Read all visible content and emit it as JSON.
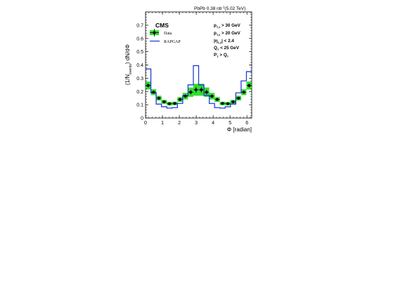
{
  "header": {
    "collab": "PbPb 0.38 nb",
    "lumi_exp": "-1",
    "energy": "(5.02 TeV)"
  },
  "chart_data": {
    "type": "histogram",
    "experiment": "CMS",
    "xlabel": "Φ [radian]",
    "ylabel": {
      "main": "(1/N",
      "sub": "events",
      "tail": ") dN/dΦ"
    },
    "xlim": [
      0,
      6.283
    ],
    "ylim": [
      0,
      0.8
    ],
    "xticks": [
      0,
      1,
      2,
      3,
      4,
      5,
      6
    ],
    "yticks": [
      0,
      0.1,
      0.2,
      0.3,
      0.4,
      0.5,
      0.6,
      0.7
    ],
    "legend": {
      "placement": "top-left",
      "entries": [
        {
          "label": "Data",
          "style": "marker-with-band"
        },
        {
          "label": "RAPGAP",
          "style": "line"
        }
      ]
    },
    "cuts": [
      {
        "base": "p",
        "sub": "T,1",
        "rest": " > 30 GeV"
      },
      {
        "base": "p",
        "sub": "T,2",
        "rest": " > 20 GeV"
      },
      {
        "base": "|η",
        "sub": "1,2",
        "rest": "| < 2.4"
      },
      {
        "base": "Q",
        "sub": "T",
        "rest": " < 25 GeV"
      },
      {
        "base": "P",
        "sub": "T",
        "rest": " > Q",
        "tailsub": "T"
      }
    ],
    "bins": 20,
    "series": [
      {
        "name": "Data",
        "color": "#000000",
        "band_color": "#33dd33",
        "values": [
          0.245,
          0.195,
          0.15,
          0.122,
          0.108,
          0.11,
          0.14,
          0.165,
          0.195,
          0.213,
          0.213,
          0.195,
          0.165,
          0.14,
          0.11,
          0.108,
          0.122,
          0.15,
          0.195,
          0.245
        ],
        "syst": [
          0.03,
          0.022,
          0.018,
          0.015,
          0.013,
          0.013,
          0.018,
          0.025,
          0.035,
          0.045,
          0.045,
          0.035,
          0.025,
          0.018,
          0.013,
          0.013,
          0.015,
          0.018,
          0.022,
          0.03
        ]
      },
      {
        "name": "RAPGAP",
        "color": "#1f3fd6",
        "values": [
          0.37,
          0.19,
          0.105,
          0.085,
          0.075,
          0.078,
          0.11,
          0.17,
          0.25,
          0.395,
          0.25,
          0.17,
          0.11,
          0.078,
          0.075,
          0.085,
          0.105,
          0.19,
          0.28,
          0.35
        ]
      }
    ]
  }
}
